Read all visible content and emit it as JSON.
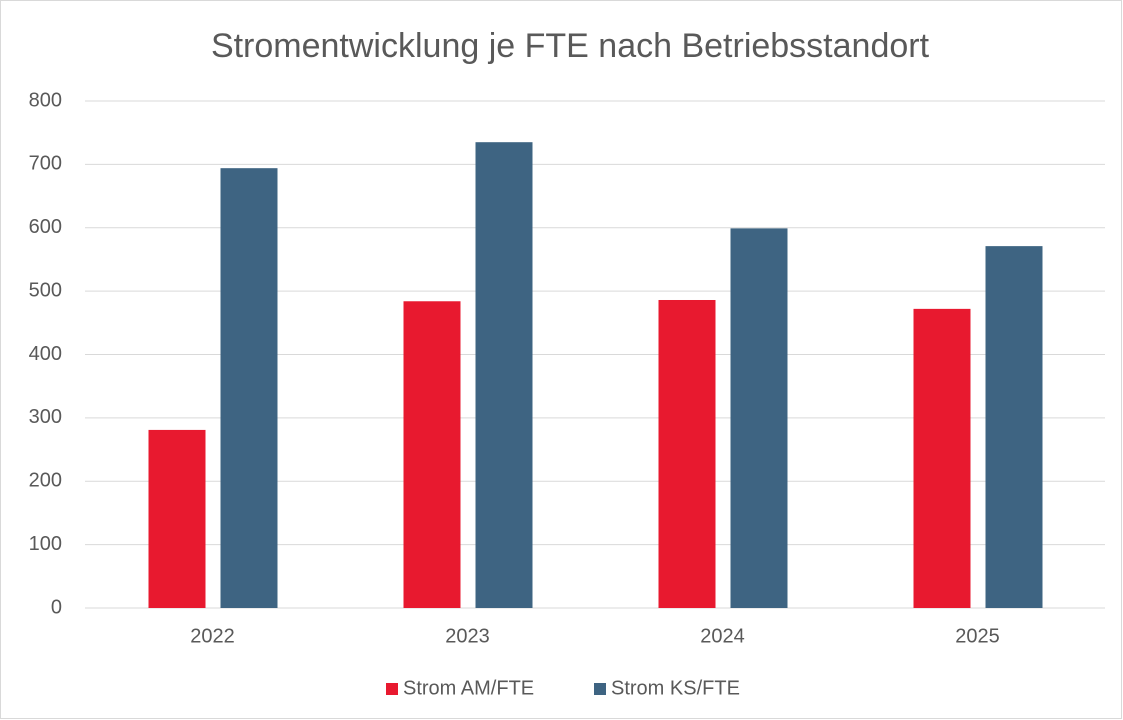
{
  "chart_data": {
    "type": "bar",
    "title": "Stromentwicklung je FTE nach Betriebsstandort",
    "categories": [
      "2022",
      "2023",
      "2024",
      "2025"
    ],
    "series": [
      {
        "name": "Strom AM/FTE",
        "color": "#e8192f",
        "values": [
          281,
          484,
          486,
          472
        ]
      },
      {
        "name": "Strom KS/FTE",
        "color": "#3e6482",
        "values": [
          694,
          735,
          599,
          571
        ]
      }
    ],
    "ylim": [
      0,
      800
    ],
    "yticks": [
      0,
      100,
      200,
      300,
      400,
      500,
      600,
      700,
      800
    ],
    "grid": true,
    "legend": "bottom"
  }
}
